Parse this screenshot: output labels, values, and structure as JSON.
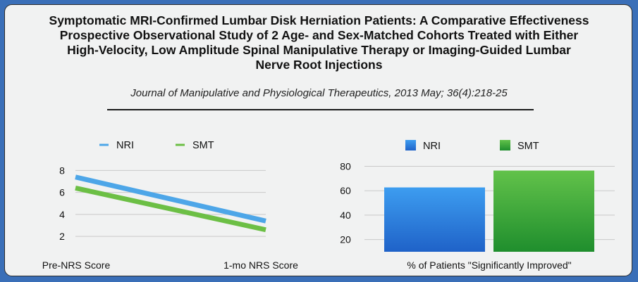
{
  "header": {
    "title_lines": [
      "Symptomatic MRI-Confirmed Lumbar Disk Herniation Patients: A Comparative Effectiveness",
      "Prospective Observational Study of 2 Age- and Sex-Matched Cohorts Treated with Either",
      "High-Velocity, Low Amplitude Spinal Manipulative Therapy or Imaging-Guided Lumbar",
      "Nerve Root Injections"
    ],
    "journal": "Journal of Manipulative and Physiological Therapeutics, 2013 May; 36(4):218-25"
  },
  "colors": {
    "nri": "#4da6e8",
    "smt": "#6cbf45",
    "nri_bar_top": "#3d9df0",
    "nri_bar_bottom": "#1f62c8",
    "smt_bar_top": "#62c24a",
    "smt_bar_bottom": "#1f8e2d"
  },
  "chart_data": [
    {
      "type": "line",
      "categories": [
        "Pre-NRS Score",
        "1-mo NRS Score"
      ],
      "series": [
        {
          "name": "NRI",
          "values": [
            7.4,
            3.4
          ]
        },
        {
          "name": "SMT",
          "values": [
            6.4,
            2.6
          ]
        }
      ],
      "yticks": [
        2,
        4,
        6,
        8
      ],
      "ylim": [
        0.6,
        8.6
      ],
      "grid": true,
      "legend": "top"
    },
    {
      "type": "bar",
      "categories": [
        "% of Patients \"Significantly Improved\""
      ],
      "series": [
        {
          "name": "NRI",
          "values": [
            62.7
          ]
        },
        {
          "name": "SMT",
          "values": [
            76.5
          ]
        }
      ],
      "yticks": [
        20,
        40,
        60,
        80
      ],
      "ylim": [
        10,
        82
      ],
      "grid": true,
      "legend": "top"
    }
  ]
}
